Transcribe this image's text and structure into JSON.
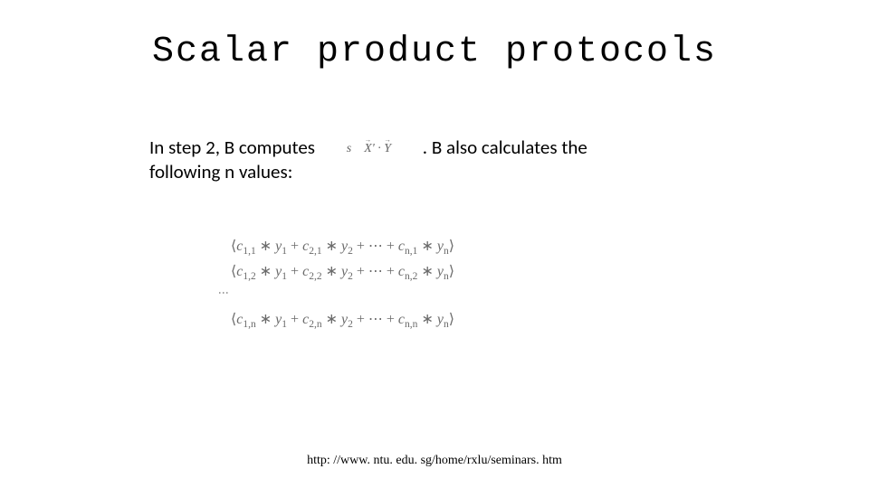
{
  "slide": {
    "title": "Scalar product protocols",
    "body": {
      "prefix": "In step 2, B computes",
      "inline_math": "s   X' · Y",
      "suffix": ". B also calculates the",
      "line2": "following n values:"
    },
    "math_rows": {
      "r1": "⟨c₁,₁ ∗ y₁ + c₂,₁ ∗ y₂ + ⋯ + cₙ,₁ ∗ yₙ⟩",
      "r2": "⟨c₁,₂ ∗ y₁ + c₂,₂ ∗ y₂ + ⋯ + cₙ,₂ ∗ yₙ⟩",
      "dots": "⋮",
      "rN": "⟨c₁,ₙ ∗ y₁ + c₂,ₙ ∗ y₂ + ⋯ + cₙ,ₙ ∗ yₙ⟩"
    },
    "footer": "http: //www. ntu. edu. sg/home/rxlu/seminars. htm"
  },
  "style": {
    "background": "#ffffff",
    "title_font": "Courier New",
    "title_fontsize": 40,
    "body_font": "Calibri",
    "body_fontsize": 21,
    "math_color": "#6b6b6b",
    "math_fontsize": 16,
    "footer_fontsize": 14,
    "text_color": "#000000"
  }
}
